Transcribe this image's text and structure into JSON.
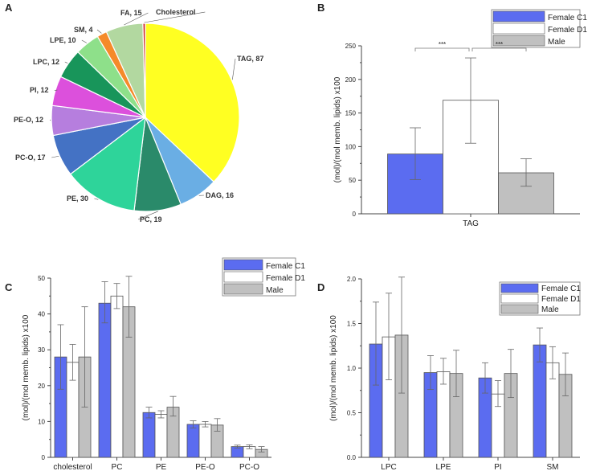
{
  "panels": {
    "A": "A",
    "B": "B",
    "C": "C",
    "D": "D"
  },
  "legend": [
    "Female C1",
    "Female D1",
    "Male"
  ],
  "colors": {
    "female_c1": "#5b6cf0",
    "female_d1": "#ffffff",
    "male": "#c0c0c0",
    "axis": "#444444"
  },
  "chart_data": [
    {
      "panel": "A",
      "type": "pie",
      "title": "",
      "slices": [
        {
          "label": "TAG, 87",
          "name": "TAG",
          "value": 87,
          "color": "#ffff22"
        },
        {
          "label": "DAG, 16",
          "name": "DAG",
          "value": 16,
          "color": "#6aaee4"
        },
        {
          "label": "PC, 19",
          "name": "PC",
          "value": 19,
          "color": "#2a8a6a"
        },
        {
          "label": "PE, 30",
          "name": "PE",
          "value": 30,
          "color": "#2ed49a"
        },
        {
          "label": "PC-O, 17",
          "name": "PC-O",
          "value": 17,
          "color": "#4472c4"
        },
        {
          "label": "PE-O, 12",
          "name": "PE-O",
          "value": 12,
          "color": "#b67ede"
        },
        {
          "label": "PI, 12",
          "name": "PI",
          "value": 12,
          "color": "#dc50dc"
        },
        {
          "label": "LPC, 12",
          "name": "LPC",
          "value": 12,
          "color": "#18955a"
        },
        {
          "label": "LPE, 10",
          "name": "LPE",
          "value": 10,
          "color": "#8ee08a"
        },
        {
          "label": "SM, 4",
          "name": "SM",
          "value": 4,
          "color": "#f58a2a"
        },
        {
          "label": "FA, 15",
          "name": "FA",
          "value": 15,
          "color": "#b2d8a0"
        },
        {
          "label": "Cholesterol",
          "name": "Cholesterol",
          "value": 1,
          "color": "#d03030"
        }
      ]
    },
    {
      "panel": "B",
      "type": "bar",
      "categories": [
        "TAG"
      ],
      "ylabel": "(mol)/(mol memb. lipids) x100",
      "ylim": [
        0,
        250
      ],
      "yticks": [
        0,
        50,
        100,
        150,
        200,
        250
      ],
      "significance": [
        "***",
        "***"
      ],
      "series": [
        {
          "name": "Female C1",
          "values": [
            89
          ],
          "err_low": [
            51
          ],
          "err_high": [
            128
          ]
        },
        {
          "name": "Female D1",
          "values": [
            169
          ],
          "err_low": [
            105
          ],
          "err_high": [
            232
          ]
        },
        {
          "name": "Male",
          "values": [
            61
          ],
          "err_low": [
            41
          ],
          "err_high": [
            82
          ]
        }
      ]
    },
    {
      "panel": "C",
      "type": "bar",
      "categories": [
        "cholesterol",
        "PC",
        "PE",
        "PE-O",
        "PC-O"
      ],
      "ylabel": "(mol)/(mol memb. lipids) x100",
      "ylim": [
        0,
        50
      ],
      "yticks": [
        0,
        10,
        20,
        30,
        40,
        50
      ],
      "series": [
        {
          "name": "Female C1",
          "values": [
            28,
            43,
            12.5,
            9.2,
            3.0
          ],
          "err_low": [
            19,
            37.5,
            11,
            8.2,
            2.6
          ],
          "err_high": [
            37,
            49,
            14,
            10.2,
            3.4
          ]
        },
        {
          "name": "Female D1",
          "values": [
            26.5,
            45,
            12,
            9.2,
            3.0
          ],
          "err_low": [
            21.5,
            41.5,
            11,
            8.5,
            2.4
          ],
          "err_high": [
            31.5,
            48.5,
            13,
            10,
            3.5
          ]
        },
        {
          "name": "Male",
          "values": [
            28,
            42,
            14,
            9.0,
            2.2
          ],
          "err_low": [
            14,
            33.5,
            11.5,
            7.3,
            1.5
          ],
          "err_high": [
            42,
            50.5,
            17,
            10.8,
            3.0
          ]
        }
      ]
    },
    {
      "panel": "D",
      "type": "bar",
      "categories": [
        "LPC",
        "LPE",
        "PI",
        "SM"
      ],
      "ylabel": "(mol)/(mol memb. lipids) x100",
      "ylim": [
        0,
        2.0
      ],
      "yticks": [
        "0.0",
        "0.5",
        "1.0",
        "1.5",
        "2.0"
      ],
      "series": [
        {
          "name": "Female C1",
          "values": [
            1.27,
            0.95,
            0.89,
            1.26
          ],
          "err_low": [
            0.81,
            0.76,
            0.72,
            1.07
          ],
          "err_high": [
            1.74,
            1.14,
            1.06,
            1.45
          ]
        },
        {
          "name": "Female D1",
          "values": [
            1.35,
            0.96,
            0.71,
            1.06
          ],
          "err_low": [
            0.87,
            0.82,
            0.57,
            0.88
          ],
          "err_high": [
            1.84,
            1.11,
            0.86,
            1.24
          ]
        },
        {
          "name": "Male",
          "values": [
            1.37,
            0.94,
            0.94,
            0.93
          ],
          "err_low": [
            0.72,
            0.68,
            0.67,
            0.69
          ],
          "err_high": [
            2.02,
            1.2,
            1.21,
            1.17
          ]
        }
      ]
    }
  ]
}
